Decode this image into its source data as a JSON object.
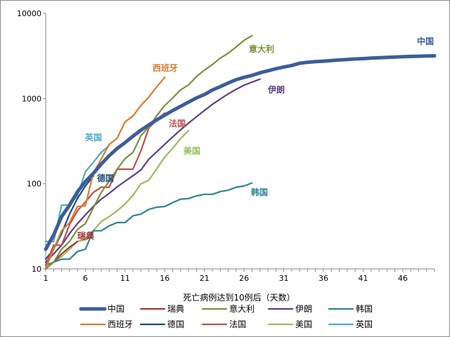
{
  "chart_data": {
    "type": "line",
    "xlabel": "死亡病例达到10例后（天数）",
    "ylabel": "",
    "x_ticks": [
      1,
      6,
      11,
      16,
      21,
      26,
      31,
      36,
      41,
      46
    ],
    "y_ticks": [
      10,
      100,
      1000,
      10000
    ],
    "y_tick_labels": [
      "10",
      "100",
      "1000",
      "10000"
    ],
    "xlim": [
      1,
      50
    ],
    "ylim": [
      10,
      10000
    ],
    "yscale": "log",
    "grid": false,
    "legend_position": "bottom",
    "series": [
      {
        "name": "中国",
        "label": "中国",
        "color": "#3c5d9a",
        "width": 5,
        "x": [
          1,
          2,
          3,
          4,
          5,
          6,
          7,
          8,
          9,
          10,
          11,
          12,
          13,
          14,
          15,
          16,
          17,
          18,
          19,
          20,
          21,
          22,
          23,
          24,
          25,
          26,
          27,
          28,
          29,
          30,
          31,
          32,
          33,
          34,
          35,
          36,
          37,
          38,
          39,
          40,
          41,
          42,
          43,
          44,
          45,
          46,
          47,
          48,
          49,
          50
        ],
        "y": [
          17,
          25,
          41,
          56,
          80,
          106,
          132,
          170,
          213,
          259,
          304,
          361,
          425,
          490,
          563,
          638,
          722,
          811,
          908,
          1016,
          1113,
          1259,
          1380,
          1523,
          1665,
          1770,
          1868,
          2004,
          2118,
          2236,
          2345,
          2442,
          2592,
          2663,
          2715,
          2744,
          2788,
          2835,
          2870,
          2912,
          2943,
          2981,
          3012,
          3042,
          3070,
          3097,
          3119,
          3136,
          3158,
          3173
        ]
      },
      {
        "name": "瑞典",
        "label": "瑞典",
        "color": "#9c2c2c",
        "width": 2,
        "x": [
          1,
          2,
          3,
          4,
          5
        ],
        "y": [
          10,
          12,
          15,
          18,
          21
        ]
      },
      {
        "name": "意大利",
        "label": "意大利",
        "color": "#76943b",
        "width": 2.2,
        "x": [
          1,
          2,
          3,
          4,
          5,
          6,
          7,
          8,
          9,
          10,
          11,
          12,
          13,
          14,
          15,
          16,
          17,
          18,
          19,
          20,
          21,
          22,
          23,
          24,
          25,
          26,
          27
        ],
        "y": [
          10,
          12,
          17,
          21,
          29,
          34,
          52,
          79,
          107,
          148,
          197,
          233,
          366,
          463,
          631,
          827,
          1016,
          1266,
          1441,
          1809,
          2158,
          2503,
          2978,
          3405,
          4032,
          4825,
          5476
        ]
      },
      {
        "name": "伊朗",
        "label": "伊朗",
        "color": "#5e3f86",
        "width": 2.2,
        "x": [
          1,
          2,
          3,
          4,
          5,
          6,
          7,
          8,
          9,
          10,
          11,
          12,
          13,
          14,
          15,
          16,
          17,
          18,
          19,
          20,
          21,
          22,
          23,
          24,
          25,
          26,
          27,
          28
        ],
        "y": [
          12,
          15,
          19,
          26,
          34,
          43,
          54,
          66,
          77,
          92,
          107,
          124,
          145,
          194,
          237,
          291,
          354,
          429,
          514,
          611,
          724,
          853,
          988,
          1135,
          1284,
          1433,
          1556,
          1685
        ]
      },
      {
        "name": "韩国",
        "label": "韩国",
        "color": "#2d8397",
        "width": 2.2,
        "x": [
          1,
          2,
          3,
          4,
          5,
          6,
          7,
          8,
          9,
          10,
          11,
          12,
          13,
          14,
          15,
          16,
          17,
          18,
          19,
          20,
          21,
          22,
          23,
          24,
          25,
          26,
          27
        ],
        "y": [
          11,
          12,
          13,
          13,
          16,
          17,
          28,
          28,
          32,
          35,
          35,
          42,
          44,
          50,
          53,
          54,
          60,
          66,
          67,
          72,
          75,
          75,
          81,
          84,
          91,
          94,
          102
        ]
      },
      {
        "name": "西班牙",
        "label": "西班牙",
        "color": "#e07b2c",
        "width": 2.2,
        "x": [
          1,
          2,
          3,
          4,
          5,
          6,
          7,
          8,
          9,
          10,
          11,
          12,
          13,
          14,
          15,
          16
        ],
        "y": [
          10,
          17,
          28,
          35,
          54,
          55,
          133,
          195,
          289,
          342,
          533,
          623,
          830,
          1043,
          1375,
          1772
        ]
      },
      {
        "name": "德国",
        "label": "德国",
        "color": "#1f4d79",
        "width": 2.2,
        "x": [
          1,
          2,
          3,
          4,
          5,
          6,
          7
        ],
        "y": [
          13,
          17,
          26,
          44,
          67,
          94,
          123
        ]
      },
      {
        "name": "法国",
        "label": "法国",
        "color": "#c0504d",
        "width": 2.2,
        "x": [
          1,
          2,
          3,
          4,
          5,
          6,
          7,
          8,
          9,
          10,
          11,
          12,
          13,
          14,
          15,
          16
        ],
        "y": [
          11,
          19,
          19,
          33,
          48,
          61,
          79,
          91,
          91,
          148,
          148,
          148,
          243,
          450,
          562,
          674
        ]
      },
      {
        "name": "美国",
        "label": "美国",
        "color": "#9bbb59",
        "width": 2.2,
        "x": [
          1,
          2,
          3,
          4,
          5,
          6,
          7,
          8,
          9,
          10,
          11,
          12,
          13,
          14,
          15,
          16,
          17,
          18,
          19
        ],
        "y": [
          11,
          12,
          14,
          17,
          21,
          22,
          28,
          36,
          41,
          48,
          58,
          73,
          100,
          110,
          150,
          205,
          260,
          340,
          420
        ]
      },
      {
        "name": "英国",
        "label": "英国",
        "color": "#4bacc6",
        "width": 2.2,
        "x": [
          1,
          2,
          3,
          4,
          5,
          6,
          7,
          8,
          9
        ],
        "y": [
          21,
          21,
          56,
          56,
          72,
          138,
          178,
          233,
          281
        ]
      }
    ]
  },
  "legend": {
    "rows": [
      [
        "中国",
        "瑞典",
        "意大利",
        "伊朗",
        "韩国"
      ],
      [
        "西班牙",
        "德国",
        "法国",
        "美国",
        "英国"
      ]
    ]
  }
}
